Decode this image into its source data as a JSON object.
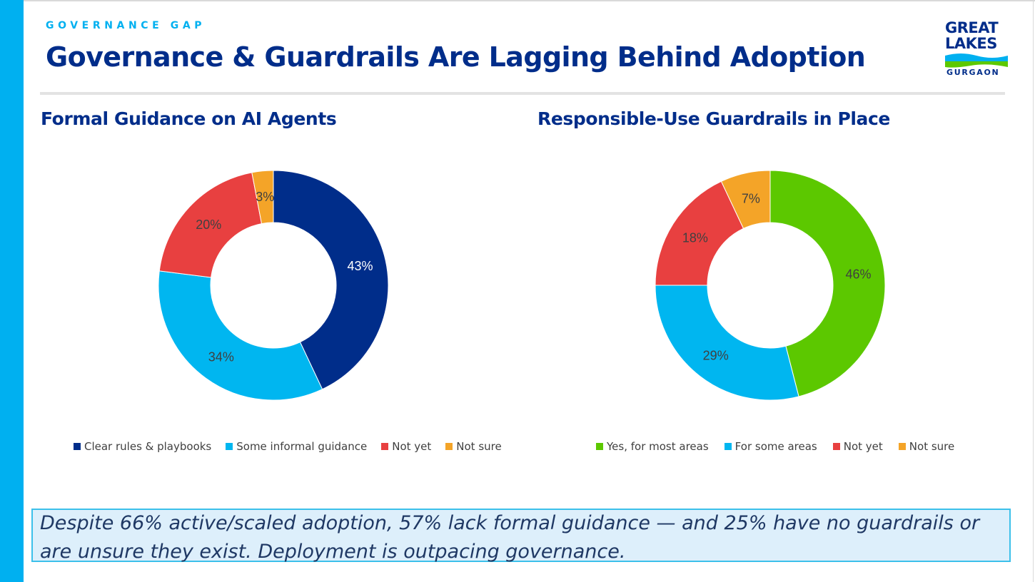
{
  "header": {
    "eyebrow": "GOVERNANCE GAP",
    "title": "Governance & Guardrails Are Lagging Behind Adoption"
  },
  "logo": {
    "line1": "GREAT",
    "line2": "LAKES",
    "line3": "GURGAON"
  },
  "chart_data": [
    {
      "type": "pie",
      "title": "Formal Guidance on AI Agents",
      "categories": [
        "Clear rules & playbooks",
        "Some informal guidance",
        "Not yet",
        "Not sure"
      ],
      "values": [
        43,
        34,
        20,
        3
      ],
      "labels": [
        "43%",
        "34%",
        "20%",
        "3%"
      ],
      "colors": [
        "#002D8A",
        "#00B6F0",
        "#E84040",
        "#F4A428"
      ],
      "label_colors": [
        "#ffffff",
        "#404040",
        "#404040",
        "#404040"
      ],
      "legend_position": "bottom"
    },
    {
      "type": "pie",
      "title": "Responsible-Use Guardrails in Place",
      "categories": [
        "Yes, for most areas",
        "For some areas",
        "Not yet",
        "Not sure"
      ],
      "values": [
        46,
        29,
        18,
        7
      ],
      "labels": [
        "46%",
        "29%",
        "18%",
        "7%"
      ],
      "colors": [
        "#5CC800",
        "#00B6F0",
        "#E84040",
        "#F4A428"
      ],
      "label_colors": [
        "#404040",
        "#404040",
        "#404040",
        "#404040"
      ],
      "legend_position": "bottom"
    }
  ],
  "callout": {
    "text": "Despite 66% active/scaled adoption, 57% lack formal guidance — and 25% have no guardrails or are unsure they exist. Deployment is outpacing governance."
  }
}
